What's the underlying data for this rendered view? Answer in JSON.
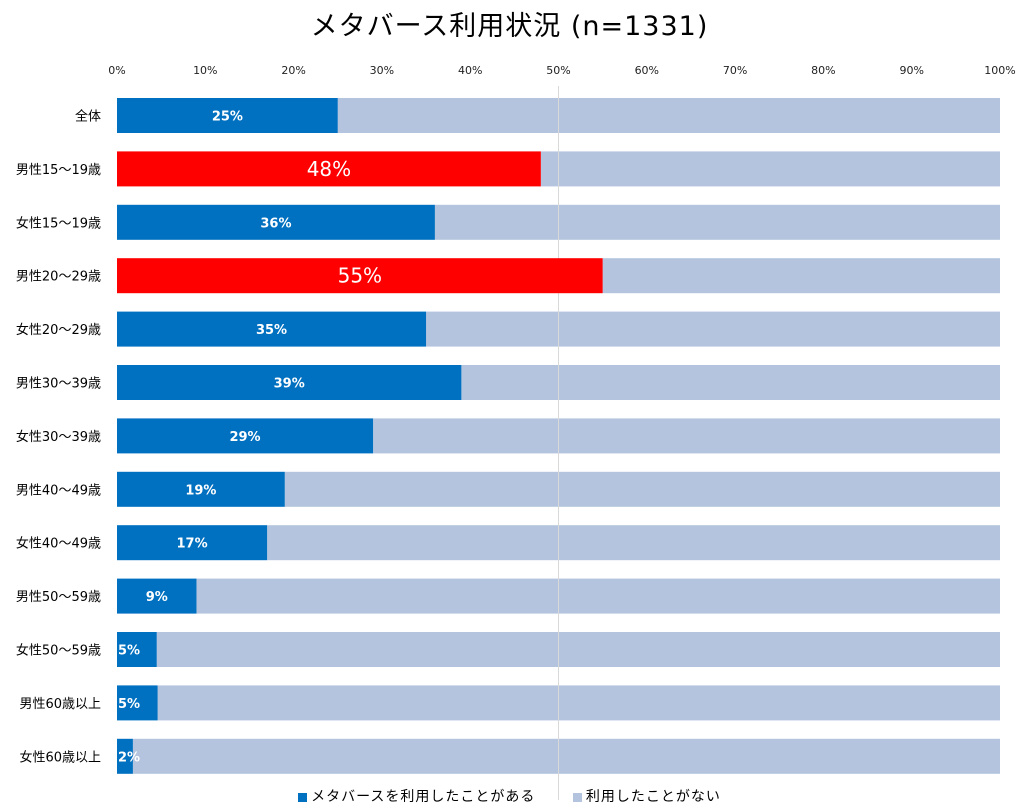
{
  "chart_data": {
    "type": "bar",
    "orientation": "horizontal",
    "stacked": "percent",
    "title": "メタバース利用状況 (n=1331)",
    "xlabel": "",
    "ylabel": "",
    "xlim": [
      0,
      100
    ],
    "x_ticks": [
      "0%",
      "10%",
      "20%",
      "30%",
      "40%",
      "50%",
      "60%",
      "70%",
      "80%",
      "90%",
      "100%"
    ],
    "x_axis_position": "top",
    "grid": "vertical gridline at 50% only",
    "legend_position": "bottom",
    "categories": [
      "全体",
      "男性15～19歳",
      "女性15～19歳",
      "男性20～29歳",
      "女性20～29歳",
      "男性30～39歳",
      "女性30～39歳",
      "男性40～49歳",
      "女性40～49歳",
      "男性50～59歳",
      "女性50～59歳",
      "男性60歳以上",
      "女性60歳以上"
    ],
    "series": [
      {
        "name": "メタバースを利用したことがある",
        "color": "#0070C0",
        "highlight_color": "#FF0000",
        "highlighted_categories": [
          "男性15～19歳",
          "男性20～29歳"
        ],
        "values": [
          25,
          48,
          36,
          55,
          35,
          39,
          29,
          19,
          17,
          9,
          4.5,
          4.6,
          1.8
        ],
        "data_labels": [
          "25%",
          "48%",
          "36%",
          "55%",
          "35%",
          "39%",
          "29%",
          "19%",
          "17%",
          "9%",
          "5%",
          "5%",
          "2%"
        ]
      },
      {
        "name": "利用したことがない",
        "color": "#B4C4DE",
        "values": [
          75,
          52,
          64,
          45,
          65,
          61,
          71,
          81,
          83,
          91,
          95.5,
          95.4,
          98.2
        ]
      }
    ]
  }
}
